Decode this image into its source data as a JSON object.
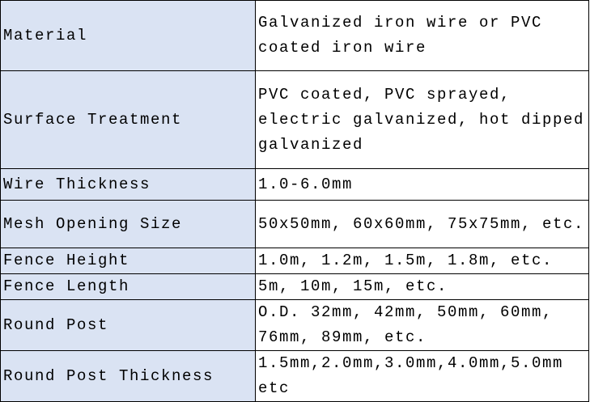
{
  "table": {
    "rows": [
      [
        "Material",
        "Galvanized iron wire or PVC coated iron wire"
      ],
      [
        "Surface Treatment",
        "PVC coated, PVC sprayed, electric galvanized, hot dipped galvanized"
      ],
      [
        "Wire Thickness",
        "1.0-6.0mm"
      ],
      [
        "Mesh Opening Size",
        "50x50mm, 60x60mm, 75x75mm, etc."
      ],
      [
        "Fence Height",
        "1.0m, 1.2m, 1.5m, 1.8m, etc."
      ],
      [
        "Fence Length",
        "5m, 10m, 15m, etc."
      ],
      [
        "Round Post",
        "O.D. 32mm, 42mm, 50mm, 60mm, 76mm, 89mm, etc."
      ],
      [
        "Round Post Thickness",
        "1.5mm,2.0mm,3.0mm,4.0mm,5.0mm etc"
      ]
    ]
  }
}
